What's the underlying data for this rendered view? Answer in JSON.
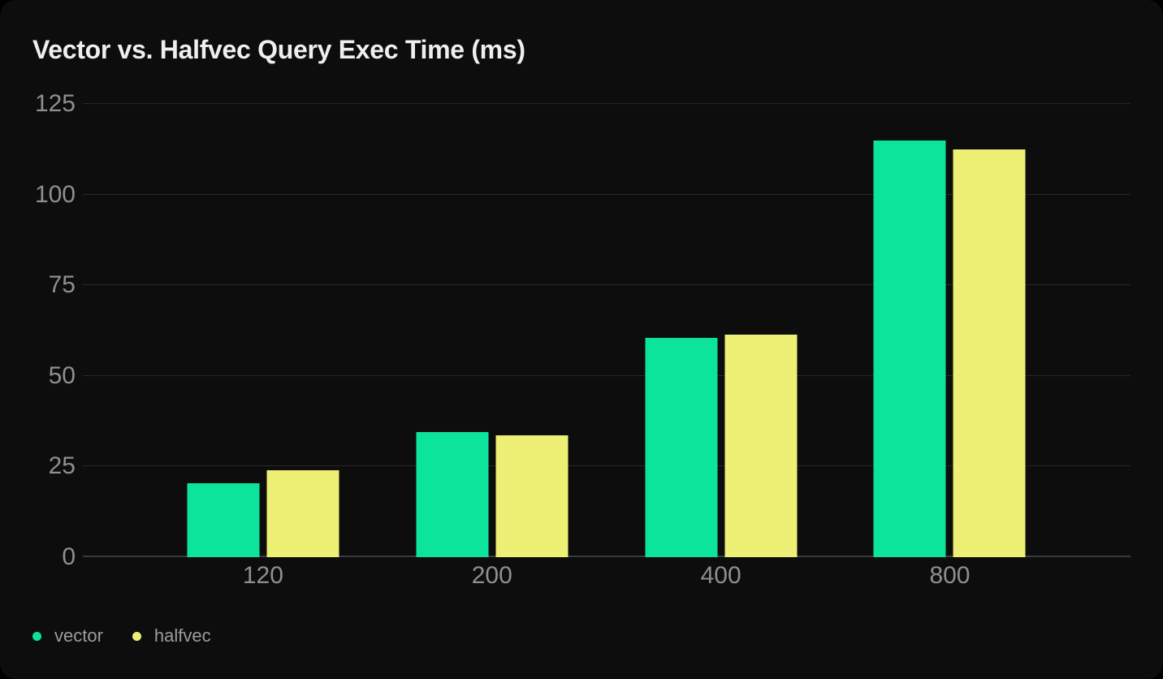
{
  "chart_data": {
    "type": "bar",
    "title": "Vector vs. Halfvec Query Exec Time (ms)",
    "categories": [
      "120",
      "200",
      "400",
      "800"
    ],
    "series": [
      {
        "name": "vector",
        "color": "#0ce49c",
        "values": [
          20.3,
          34.5,
          60.5,
          115
        ]
      },
      {
        "name": "halfvec",
        "color": "#eef076",
        "values": [
          23.9,
          33.6,
          61.4,
          112.5
        ]
      }
    ],
    "xlabel": "",
    "ylabel": "",
    "ylim": [
      0,
      125
    ],
    "yticks": [
      0,
      25,
      50,
      75,
      100,
      125
    ],
    "grid": true,
    "legend_position": "bottom-left"
  },
  "colors": {
    "page_bg": "#000000",
    "card_bg": "#0d0d0e",
    "title_text": "#efefef",
    "axis_text": "#8f8f8f",
    "gridline": "#282828",
    "zero_line": "#3b3b3b",
    "legend_text": "#9c9c9c"
  }
}
